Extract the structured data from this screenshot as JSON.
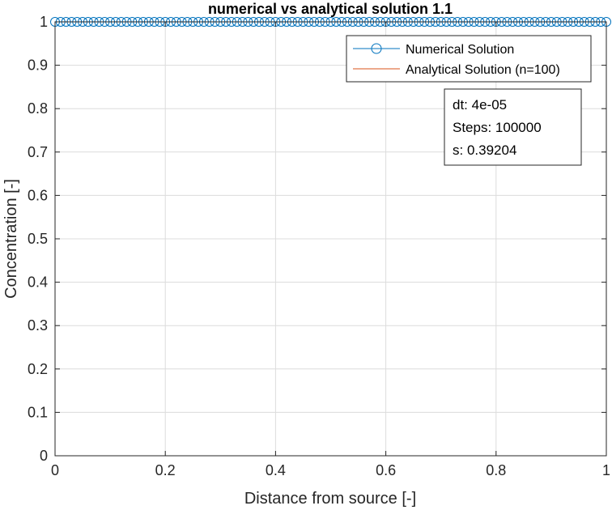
{
  "chart_data": {
    "type": "line",
    "title": "numerical vs analytical solution 1.1",
    "xlabel": "Distance from source [-]",
    "ylabel": "Concentration [-]",
    "xlim": [
      0,
      1
    ],
    "ylim": [
      0,
      1
    ],
    "xticks": [
      0,
      0.2,
      0.4,
      0.6,
      0.8,
      1
    ],
    "xtick_labels": [
      "0",
      "0.2",
      "0.4",
      "0.6",
      "0.8",
      "1"
    ],
    "yticks": [
      0,
      0.1,
      0.2,
      0.3,
      0.4,
      0.5,
      0.6,
      0.7,
      0.8,
      0.9,
      1
    ],
    "ytick_labels": [
      "0",
      "0.1",
      "0.2",
      "0.3",
      "0.4",
      "0.5",
      "0.6",
      "0.7",
      "0.8",
      "0.9",
      "1"
    ],
    "grid": true,
    "legend_position": "top-right",
    "series": [
      {
        "name": "Numerical Solution",
        "style": "line-with-circle-markers",
        "color": "#0072BD",
        "x_start": 0,
        "x_end": 1,
        "n_points": 101,
        "y_constant": 1
      },
      {
        "name": "Analytical Solution (n=100)",
        "style": "line",
        "color": "#D95319",
        "x_start": 0,
        "x_end": 1,
        "n_points": 101,
        "y_constant": 1
      }
    ],
    "annotation": {
      "lines": [
        "dt: 4e-05",
        "Steps: 100000",
        "s: 0.39204"
      ]
    }
  }
}
